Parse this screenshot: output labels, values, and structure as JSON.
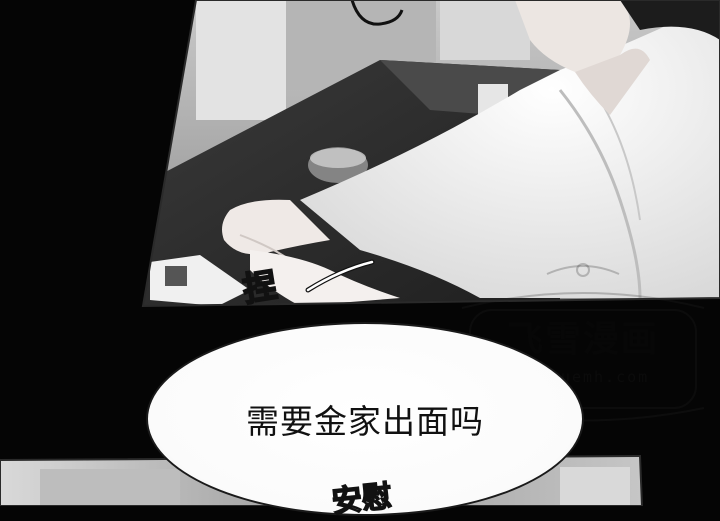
{
  "speech_bubble": {
    "text": "需要金家出面吗"
  },
  "sound_effects": {
    "pinch": "捏",
    "bottom_partial": "安慰"
  },
  "watermark": {
    "title": "飞雪漫画",
    "url": "feixuemh.com"
  },
  "colors": {
    "background": "#050505",
    "bubble_fill": "#ffffff",
    "text": "#111111"
  }
}
